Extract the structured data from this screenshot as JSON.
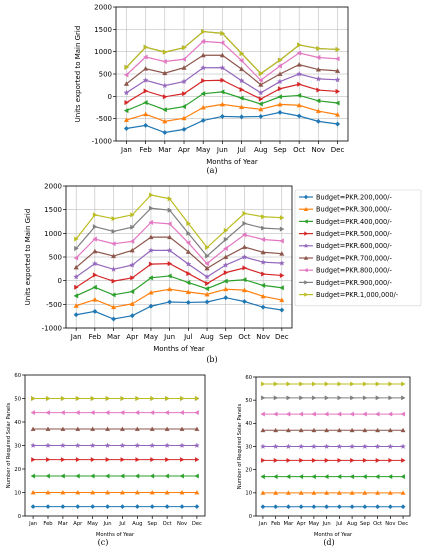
{
  "figure": {
    "caption_a": "(a)",
    "caption_b": "(b)",
    "caption_c": "(c)",
    "caption_d": "(d)"
  },
  "series_colors": [
    "#1f77b4",
    "#ff7f0e",
    "#2ca02c",
    "#d62728",
    "#9467bd",
    "#8c564b",
    "#e377c2",
    "#7f7f7f",
    "#bcbd22"
  ],
  "markers": [
    "diamond",
    "triangle-up",
    "triangle-left",
    "triangle-right",
    "star",
    "triangle-up",
    "triangle-left",
    "triangle-right",
    "triangle-right"
  ],
  "chart_data": [
    {
      "id": "a",
      "type": "line",
      "title": "",
      "xlabel": "Months of Year",
      "ylabel": "Units exported to Main Grid",
      "categories": [
        "Jan",
        "Feb",
        "Mar",
        "Apr",
        "May",
        "Jun",
        "Jul",
        "Aug",
        "Sep",
        "Oct",
        "Nov",
        "Dec"
      ],
      "ylim": [
        -1000,
        2000
      ],
      "yticks": [
        -1000,
        -500,
        0,
        500,
        1000,
        1500,
        2000
      ],
      "grid": true,
      "legend": "none",
      "series": [
        {
          "values": [
            -720,
            -650,
            -810,
            -740,
            -540,
            -450,
            -460,
            -450,
            -360,
            -440,
            -560,
            -620
          ]
        },
        {
          "values": [
            -530,
            -400,
            -560,
            -490,
            -250,
            -180,
            -240,
            -290,
            -180,
            -200,
            -330,
            -410
          ]
        },
        {
          "values": [
            -320,
            -140,
            -300,
            -230,
            60,
            100,
            -40,
            -170,
            -10,
            20,
            -100,
            -150
          ]
        },
        {
          "values": [
            -140,
            120,
            -10,
            60,
            350,
            360,
            150,
            -60,
            170,
            270,
            140,
            110
          ]
        },
        {
          "values": [
            80,
            360,
            240,
            330,
            640,
            640,
            350,
            80,
            330,
            500,
            390,
            370
          ]
        },
        {
          "values": [
            280,
            620,
            520,
            640,
            920,
            920,
            610,
            260,
            500,
            710,
            600,
            570
          ]
        },
        {
          "values": [
            480,
            880,
            780,
            830,
            1230,
            1200,
            800,
            360,
            680,
            970,
            870,
            840
          ]
        },
        {
          "values": [
            650,
            1100,
            990,
            1090,
            1450,
            1410,
            960,
            510,
            810,
            1150,
            1070,
            1050
          ]
        },
        {
          "values": [
            650,
            1100,
            990,
            1090,
            1450,
            1410,
            960,
            510,
            810,
            1150,
            1070,
            1050
          ]
        }
      ]
    },
    {
      "id": "b",
      "type": "line",
      "title": "",
      "xlabel": "Months of Year",
      "ylabel": "Units exported to Main Grid",
      "categories": [
        "Jan",
        "Feb",
        "Mar",
        "Apr",
        "May",
        "Jun",
        "Jul",
        "Aug",
        "Sep",
        "Oct",
        "Nov",
        "Dec"
      ],
      "ylim": [
        -1000,
        2000
      ],
      "yticks": [
        -1000,
        -500,
        0,
        500,
        1000,
        1500,
        2000
      ],
      "grid": true,
      "legend": "right-outside",
      "series": [
        {
          "name": "Budget=PKR.200,000/-",
          "values": [
            -720,
            -650,
            -810,
            -740,
            -540,
            -450,
            -460,
            -450,
            -360,
            -440,
            -560,
            -620
          ]
        },
        {
          "name": "Budget=PKR.300,000/-",
          "values": [
            -530,
            -400,
            -560,
            -490,
            -250,
            -180,
            -240,
            -290,
            -180,
            -200,
            -330,
            -410
          ]
        },
        {
          "name": "Budget=PKR.400,000/-",
          "values": [
            -320,
            -140,
            -300,
            -230,
            60,
            100,
            -40,
            -170,
            -10,
            20,
            -100,
            -150
          ]
        },
        {
          "name": "Budget=PKR.500,000/-",
          "values": [
            -140,
            120,
            -10,
            60,
            350,
            360,
            150,
            -60,
            170,
            270,
            140,
            110
          ]
        },
        {
          "name": "Budget=PKR.600,000/-",
          "values": [
            80,
            360,
            240,
            330,
            640,
            640,
            350,
            80,
            330,
            500,
            390,
            370
          ]
        },
        {
          "name": "Budget=PKR.700,000/-",
          "values": [
            280,
            620,
            520,
            640,
            920,
            920,
            610,
            260,
            500,
            710,
            600,
            570
          ]
        },
        {
          "name": "Budget=PKR.800,000/-",
          "values": [
            480,
            880,
            780,
            830,
            1230,
            1200,
            800,
            360,
            680,
            970,
            870,
            840
          ]
        },
        {
          "name": "Budget=PKR.900,000/-",
          "values": [
            680,
            1140,
            1040,
            1130,
            1530,
            1490,
            1000,
            520,
            870,
            1210,
            1110,
            1090
          ]
        },
        {
          "name": "Budget=PKR.1,000,000/-",
          "values": [
            880,
            1390,
            1310,
            1390,
            1810,
            1730,
            1210,
            700,
            1060,
            1420,
            1350,
            1330
          ]
        }
      ]
    },
    {
      "id": "c",
      "type": "line",
      "title": "",
      "xlabel": "Months of Year",
      "ylabel": "Number of Required Solar Panels",
      "categories": [
        "Jan",
        "Feb",
        "Mar",
        "Apr",
        "May",
        "Jun",
        "Jul",
        "Aug",
        "Sep",
        "Oct",
        "Nov",
        "Dec"
      ],
      "ylim": [
        0,
        60
      ],
      "yticks": [
        0,
        10,
        20,
        30,
        40,
        50,
        60
      ],
      "grid": false,
      "legend": "none",
      "series": [
        {
          "values": [
            4,
            4,
            4,
            4,
            4,
            4,
            4,
            4,
            4,
            4,
            4,
            4
          ]
        },
        {
          "values": [
            10,
            10,
            10,
            10,
            10,
            10,
            10,
            10,
            10,
            10,
            10,
            10
          ]
        },
        {
          "values": [
            17,
            17,
            17,
            17,
            17,
            17,
            17,
            17,
            17,
            17,
            17,
            17
          ]
        },
        {
          "values": [
            24,
            24,
            24,
            24,
            24,
            24,
            24,
            24,
            24,
            24,
            24,
            24
          ]
        },
        {
          "values": [
            30,
            30,
            30,
            30,
            30,
            30,
            30,
            30,
            30,
            30,
            30,
            30
          ]
        },
        {
          "values": [
            37,
            37,
            37,
            37,
            37,
            37,
            37,
            37,
            37,
            37,
            37,
            37
          ]
        },
        {
          "values": [
            44,
            44,
            44,
            44,
            44,
            44,
            44,
            44,
            44,
            44,
            44,
            44
          ]
        },
        {
          "values": [
            50,
            50,
            50,
            50,
            50,
            50,
            50,
            50,
            50,
            50,
            50,
            50
          ]
        },
        {
          "values": [
            50,
            50,
            50,
            50,
            50,
            50,
            50,
            50,
            50,
            50,
            50,
            50
          ]
        }
      ]
    },
    {
      "id": "d",
      "type": "line",
      "title": "",
      "xlabel": "Months of Year",
      "ylabel": "Number of Required Solar Panels",
      "categories": [
        "Jan",
        "Feb",
        "Mar",
        "Apr",
        "May",
        "Jun",
        "Jul",
        "Aug",
        "Sep",
        "Oct",
        "Nov",
        "Dec"
      ],
      "ylim": [
        0,
        60
      ],
      "yticks": [
        0,
        10,
        20,
        30,
        40,
        50,
        60
      ],
      "grid": false,
      "legend": "none",
      "series": [
        {
          "values": [
            4,
            4,
            4,
            4,
            4,
            4,
            4,
            4,
            4,
            4,
            4,
            4
          ]
        },
        {
          "values": [
            10,
            10,
            10,
            10,
            10,
            10,
            10,
            10,
            10,
            10,
            10,
            10
          ]
        },
        {
          "values": [
            17,
            17,
            17,
            17,
            17,
            17,
            17,
            17,
            17,
            17,
            17,
            17
          ]
        },
        {
          "values": [
            24,
            24,
            24,
            24,
            24,
            24,
            24,
            24,
            24,
            24,
            24,
            24
          ]
        },
        {
          "values": [
            30,
            30,
            30,
            30,
            30,
            30,
            30,
            30,
            30,
            30,
            30,
            30
          ]
        },
        {
          "values": [
            37,
            37,
            37,
            37,
            37,
            37,
            37,
            37,
            37,
            37,
            37,
            37
          ]
        },
        {
          "values": [
            44,
            44,
            44,
            44,
            44,
            44,
            44,
            44,
            44,
            44,
            44,
            44
          ]
        },
        {
          "values": [
            51,
            51,
            51,
            51,
            51,
            51,
            51,
            51,
            51,
            51,
            51,
            51
          ]
        },
        {
          "values": [
            57,
            57,
            57,
            57,
            57,
            57,
            57,
            57,
            57,
            57,
            57,
            57
          ]
        }
      ]
    }
  ]
}
